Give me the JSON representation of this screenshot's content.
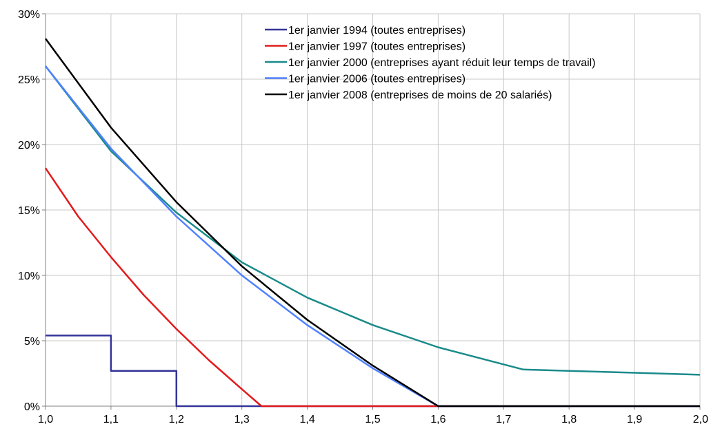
{
  "chart_data": {
    "type": "line",
    "title": "",
    "xlabel": "",
    "ylabel": "",
    "xlim": [
      1.0,
      2.0
    ],
    "ylim": [
      0,
      0.3
    ],
    "x_ticks": [
      1.0,
      1.1,
      1.2,
      1.3,
      1.4,
      1.5,
      1.6,
      1.7,
      1.8,
      1.9,
      2.0
    ],
    "x_tick_labels": [
      "1,0",
      "1,1",
      "1,2",
      "1,3",
      "1,4",
      "1,5",
      "1,6",
      "1,7",
      "1,8",
      "1,9",
      "2,0"
    ],
    "y_ticks": [
      0,
      0.05,
      0.1,
      0.15,
      0.2,
      0.25,
      0.3
    ],
    "y_tick_labels": [
      "0%",
      "5%",
      "10%",
      "15%",
      "20%",
      "25%",
      "30%"
    ],
    "grid": true,
    "legend_position": "top-right",
    "series": [
      {
        "name": "1er janvier 1994 (toutes entreprises)",
        "color": "#333399",
        "step": true,
        "x": [
          1.0,
          1.1,
          1.1,
          1.2,
          1.2,
          2.0
        ],
        "y": [
          0.054,
          0.054,
          0.027,
          0.027,
          0.0,
          0.0
        ]
      },
      {
        "name": "1er janvier 1997 (toutes entreprises)",
        "color": "#e31a1c",
        "x": [
          1.0,
          1.05,
          1.1,
          1.15,
          1.2,
          1.25,
          1.3,
          1.33,
          1.4,
          1.6,
          1.8,
          2.0
        ],
        "y": [
          0.182,
          0.145,
          0.114,
          0.085,
          0.059,
          0.035,
          0.013,
          0.0,
          0.0,
          0.0,
          0.0,
          0.0
        ]
      },
      {
        "name": "1er janvier 2000 (entreprises ayant réduit leur temps de travail)",
        "color": "#1a8a8a",
        "x": [
          1.0,
          1.1,
          1.2,
          1.3,
          1.4,
          1.5,
          1.6,
          1.73,
          1.8,
          1.9,
          2.0
        ],
        "y": [
          0.26,
          0.195,
          0.148,
          0.11,
          0.083,
          0.062,
          0.045,
          0.028,
          0.027,
          0.0255,
          0.024
        ]
      },
      {
        "name": "1er janvier 2006 (toutes entreprises)",
        "color": "#4f81ff",
        "x": [
          1.0,
          1.1,
          1.2,
          1.3,
          1.4,
          1.5,
          1.6,
          1.8,
          2.0
        ],
        "y": [
          0.26,
          0.197,
          0.145,
          0.1,
          0.062,
          0.029,
          0.0,
          0.0,
          0.0
        ]
      },
      {
        "name": "1er janvier 2008 (entreprises de moins de 20 salariés)",
        "color": "#000000",
        "x": [
          1.0,
          1.1,
          1.2,
          1.3,
          1.4,
          1.5,
          1.6,
          1.8,
          2.0
        ],
        "y": [
          0.281,
          0.213,
          0.156,
          0.107,
          0.066,
          0.031,
          0.0,
          0.0,
          0.0
        ]
      }
    ]
  }
}
